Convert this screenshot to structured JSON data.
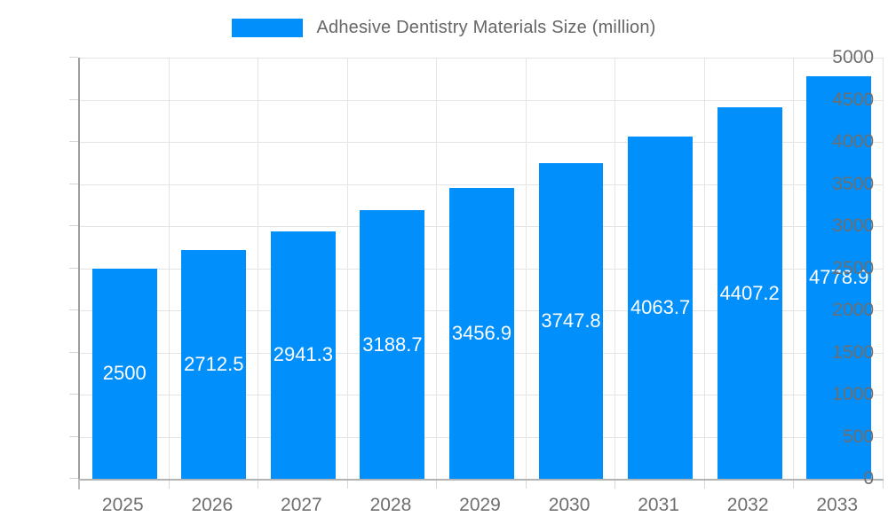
{
  "legend": {
    "label": "Adhesive Dentistry Materials Size (million)",
    "swatch_color": "#008FFB"
  },
  "chart_data": {
    "type": "bar",
    "title": "Adhesive Dentistry Materials Size (million)",
    "categories": [
      "2025",
      "2026",
      "2027",
      "2028",
      "2029",
      "2030",
      "2031",
      "2032",
      "2033"
    ],
    "values": [
      2500,
      2712.5,
      2941.3,
      3188.7,
      3456.9,
      3747.8,
      4063.7,
      4407.2,
      4778.9
    ],
    "value_labels": [
      "2500",
      "2712.5",
      "2941.3",
      "3188.7",
      "3456.9",
      "3747.8",
      "4063.7",
      "4407.2",
      "4778.9"
    ],
    "xlabel": "",
    "ylabel": "",
    "ylim": [
      0,
      5000
    ],
    "ytick_step": 500,
    "y_tick_labels": [
      "0",
      "500",
      "1000",
      "1500",
      "2000",
      "2500",
      "3000",
      "3500",
      "4000",
      "4500",
      "5000"
    ],
    "grid": true,
    "legend_position": "top",
    "bar_color": "#008FFB",
    "bar_label_color": "#ffffff"
  }
}
